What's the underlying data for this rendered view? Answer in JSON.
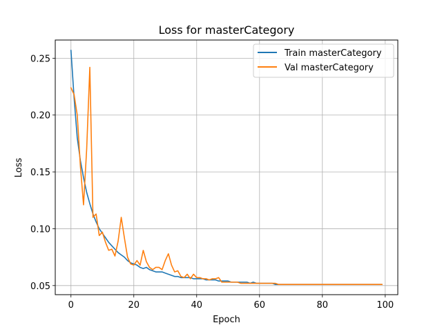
{
  "chart_data": {
    "type": "line",
    "title": "Loss for masterCategory",
    "xlabel": "Epoch",
    "ylabel": "Loss",
    "xlim": [
      -5,
      104
    ],
    "ylim": [
      0.042,
      0.266
    ],
    "xticks": [
      0,
      20,
      40,
      60,
      80,
      100
    ],
    "xtick_labels": [
      "0",
      "20",
      "40",
      "60",
      "80",
      "100"
    ],
    "yticks": [
      0.05,
      0.1,
      0.15,
      0.2,
      0.25
    ],
    "ytick_labels": [
      "0.05",
      "0.10",
      "0.15",
      "0.20",
      "0.25"
    ],
    "grid": true,
    "legend_position": "upper-right",
    "series": [
      {
        "name": "Train masterCategory",
        "color": "#1f77b4",
        "x": [
          0,
          1,
          2,
          3,
          4,
          5,
          6,
          7,
          8,
          9,
          10,
          11,
          12,
          13,
          14,
          15,
          16,
          17,
          18,
          19,
          20,
          21,
          22,
          23,
          24,
          25,
          26,
          27,
          28,
          29,
          30,
          31,
          32,
          33,
          34,
          35,
          36,
          37,
          38,
          39,
          40,
          41,
          42,
          43,
          44,
          45,
          46,
          47,
          48,
          49,
          50,
          51,
          52,
          53,
          54,
          55,
          56,
          57,
          58,
          59,
          60,
          61,
          62,
          63,
          64,
          65,
          66,
          67,
          68,
          69,
          70,
          71,
          72,
          73,
          74,
          75,
          76,
          77,
          78,
          79,
          80,
          81,
          82,
          83,
          84,
          85,
          86,
          87,
          88,
          89,
          90,
          91,
          92,
          93,
          94,
          95,
          96,
          97,
          98,
          99
        ],
        "y": [
          0.257,
          0.215,
          0.18,
          0.16,
          0.145,
          0.132,
          0.122,
          0.113,
          0.106,
          0.1,
          0.096,
          0.092,
          0.088,
          0.085,
          0.082,
          0.079,
          0.077,
          0.075,
          0.072,
          0.07,
          0.069,
          0.068,
          0.066,
          0.065,
          0.066,
          0.064,
          0.063,
          0.062,
          0.062,
          0.062,
          0.061,
          0.06,
          0.059,
          0.058,
          0.058,
          0.057,
          0.057,
          0.057,
          0.057,
          0.056,
          0.056,
          0.056,
          0.056,
          0.055,
          0.055,
          0.055,
          0.055,
          0.054,
          0.054,
          0.054,
          0.054,
          0.053,
          0.053,
          0.053,
          0.053,
          0.053,
          0.053,
          0.052,
          0.053,
          0.052,
          0.052,
          0.052,
          0.052,
          0.052,
          0.052,
          0.051,
          0.051,
          0.051,
          0.051,
          0.051,
          0.051,
          0.051,
          0.051,
          0.051,
          0.051,
          0.051,
          0.051,
          0.051,
          0.051,
          0.051,
          0.051,
          0.051,
          0.051,
          0.051,
          0.051,
          0.051,
          0.051,
          0.051,
          0.051,
          0.051,
          0.051,
          0.051,
          0.051,
          0.051,
          0.051,
          0.051,
          0.051,
          0.051,
          0.051,
          0.051
        ]
      },
      {
        "name": "Val masterCategory",
        "color": "#ff7f0e",
        "x": [
          0,
          1,
          2,
          3,
          4,
          5,
          6,
          7,
          8,
          9,
          10,
          11,
          12,
          13,
          14,
          15,
          16,
          17,
          18,
          19,
          20,
          21,
          22,
          23,
          24,
          25,
          26,
          27,
          28,
          29,
          30,
          31,
          32,
          33,
          34,
          35,
          36,
          37,
          38,
          39,
          40,
          41,
          42,
          43,
          44,
          45,
          46,
          47,
          48,
          49,
          50,
          51,
          52,
          53,
          54,
          55,
          56,
          57,
          58,
          59,
          60,
          61,
          62,
          63,
          64,
          65,
          66,
          67,
          68,
          69,
          70,
          71,
          72,
          73,
          74,
          75,
          76,
          77,
          78,
          79,
          80,
          81,
          82,
          83,
          84,
          85,
          86,
          87,
          88,
          89,
          90,
          91,
          92,
          93,
          94,
          95,
          96,
          97,
          98,
          99
        ],
        "y": [
          0.224,
          0.218,
          0.2,
          0.155,
          0.121,
          0.17,
          0.242,
          0.11,
          0.113,
          0.094,
          0.097,
          0.088,
          0.081,
          0.082,
          0.076,
          0.089,
          0.11,
          0.092,
          0.075,
          0.069,
          0.068,
          0.072,
          0.068,
          0.081,
          0.071,
          0.066,
          0.064,
          0.066,
          0.066,
          0.064,
          0.072,
          0.078,
          0.068,
          0.062,
          0.063,
          0.058,
          0.057,
          0.06,
          0.056,
          0.06,
          0.057,
          0.057,
          0.056,
          0.056,
          0.055,
          0.056,
          0.056,
          0.057,
          0.053,
          0.053,
          0.053,
          0.053,
          0.053,
          0.053,
          0.052,
          0.052,
          0.052,
          0.052,
          0.052,
          0.052,
          0.052,
          0.052,
          0.052,
          0.052,
          0.052,
          0.052,
          0.051,
          0.051,
          0.051,
          0.051,
          0.051,
          0.051,
          0.051,
          0.051,
          0.051,
          0.051,
          0.051,
          0.051,
          0.051,
          0.051,
          0.051,
          0.051,
          0.051,
          0.051,
          0.051,
          0.051,
          0.051,
          0.051,
          0.051,
          0.051,
          0.051,
          0.051,
          0.051,
          0.051,
          0.051,
          0.051,
          0.051,
          0.051,
          0.051,
          0.051
        ]
      }
    ]
  }
}
